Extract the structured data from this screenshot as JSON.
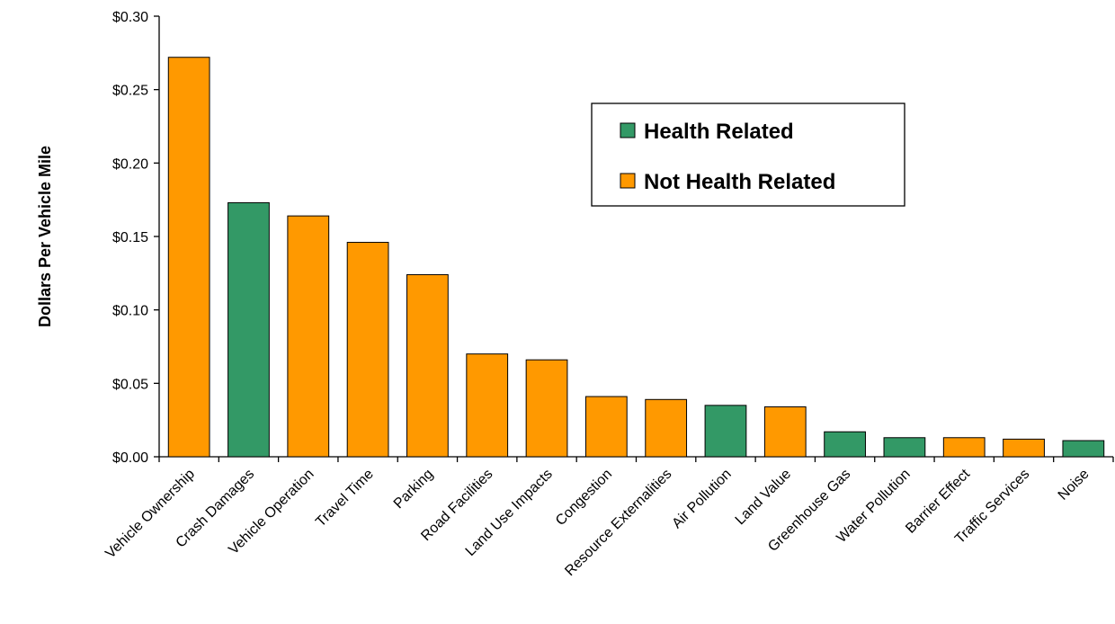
{
  "chart_data": {
    "type": "bar",
    "ylabel": "Dollars Per Vehicle  Mile",
    "xlabel": "",
    "ylim": [
      0,
      0.3
    ],
    "yticks": [
      "$0.00",
      "$0.05",
      "$0.10",
      "$0.15",
      "$0.20",
      "$0.25",
      "$0.30"
    ],
    "categories": [
      "Vehicle Ownership",
      "Crash Damages",
      "Vehicle Operation",
      "Travel Time",
      "Parking",
      "Road Facilities",
      "Land Use Impacts",
      "Congestion",
      "Resource Externalities",
      "Air Pollution",
      "Land Value",
      "Greenhouse Gas",
      "Water Pollution",
      "Barrier Effect",
      "Traffic Services",
      "Noise"
    ],
    "values": [
      0.272,
      0.173,
      0.164,
      0.146,
      0.124,
      0.07,
      0.066,
      0.041,
      0.039,
      0.035,
      0.034,
      0.017,
      0.013,
      0.013,
      0.012,
      0.011
    ],
    "groups": [
      "Not Health Related",
      "Health Related",
      "Not Health Related",
      "Not Health Related",
      "Not Health Related",
      "Not Health Related",
      "Not Health Related",
      "Not Health Related",
      "Not Health Related",
      "Health Related",
      "Not Health Related",
      "Health Related",
      "Health Related",
      "Not Health Related",
      "Not Health Related",
      "Health Related"
    ],
    "grid": false,
    "legend": {
      "placement": "top-right",
      "entries": [
        {
          "name": "Health Related",
          "color": "#339966"
        },
        {
          "name": "Not Health Related",
          "color": "#FF9900"
        }
      ]
    }
  }
}
